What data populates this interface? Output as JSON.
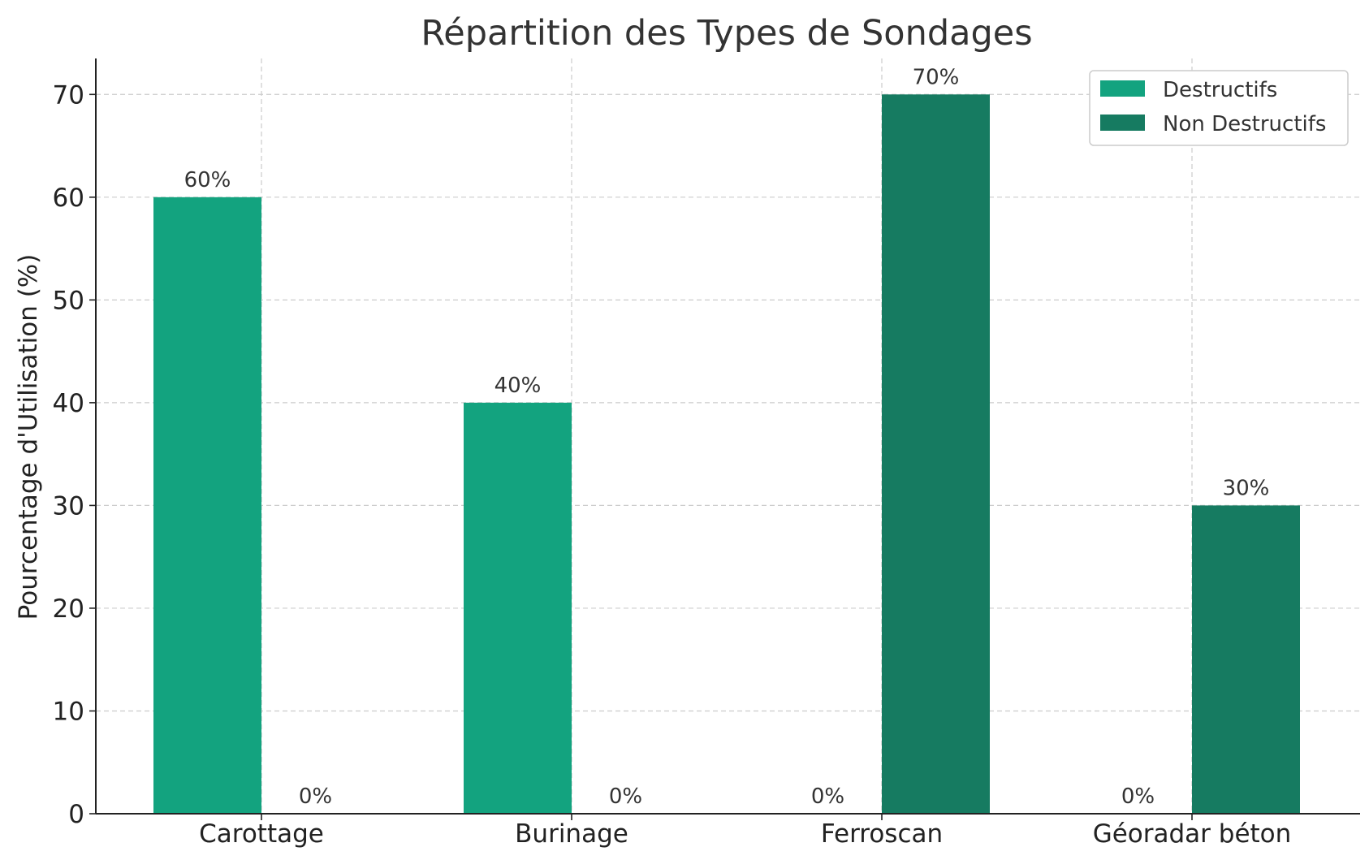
{
  "chart_data": {
    "type": "bar",
    "title": "Répartition des Types de Sondages",
    "xlabel": "",
    "ylabel": "Pourcentage d'Utilisation (%)",
    "categories": [
      "Carottage",
      "Burinage",
      "Ferroscan",
      "Géoradar béton"
    ],
    "series": [
      {
        "name": "Destructifs",
        "values": [
          60,
          40,
          0,
          0
        ],
        "color": "#13a37f"
      },
      {
        "name": "Non Destructifs",
        "values": [
          0,
          0,
          70,
          30
        ],
        "color": "#167b61"
      }
    ],
    "data_labels": [
      [
        "60%",
        "40%",
        "0%",
        "0%"
      ],
      [
        "0%",
        "0%",
        "70%",
        "30%"
      ]
    ],
    "ylim": [
      0,
      73.5
    ],
    "yticks": [
      0,
      10,
      20,
      30,
      40,
      50,
      60,
      70
    ],
    "grid": true,
    "legend_position": "top-right"
  }
}
